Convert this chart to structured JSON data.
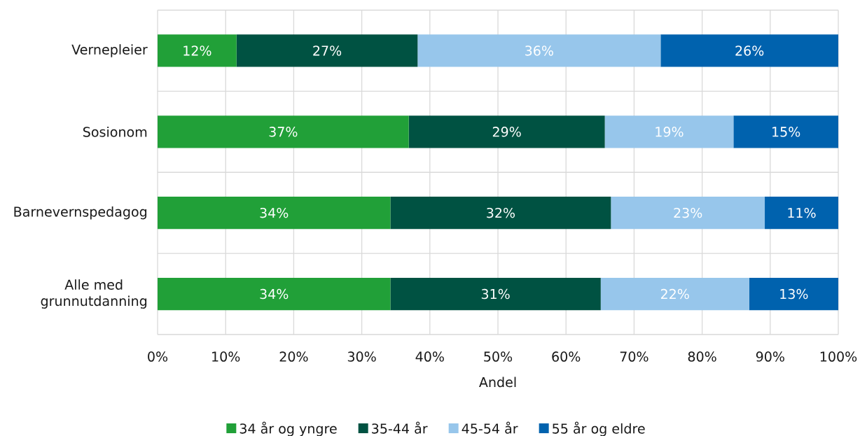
{
  "chart_data": {
    "type": "bar",
    "orientation": "horizontal",
    "stacked": true,
    "xlabel": "Andel",
    "categories": [
      "Vernepleier",
      "Sosionom",
      "Barnevernspedagog",
      "Alle med grunnutdanning"
    ],
    "series": [
      {
        "name": "34 år og yngre",
        "color": "#21a038",
        "values": [
          11.6,
          36.9,
          34.2,
          34.2
        ],
        "value_labels": [
          "12%",
          "37%",
          "34%",
          "34%"
        ]
      },
      {
        "name": "35-44 år",
        "color": "#005242",
        "values": [
          26.6,
          28.8,
          32.4,
          30.9
        ],
        "value_labels": [
          "27%",
          "29%",
          "32%",
          "31%"
        ]
      },
      {
        "name": "45-54 år",
        "color": "#97c6eb",
        "values": [
          35.7,
          18.9,
          22.6,
          21.8
        ],
        "value_labels": [
          "36%",
          "19%",
          "23%",
          "22%"
        ]
      },
      {
        "name": "55 år og eldre",
        "color": "#0062ae",
        "values": [
          26.1,
          15.4,
          10.8,
          13.1
        ],
        "value_labels": [
          "26%",
          "15%",
          "11%",
          "13%"
        ]
      }
    ],
    "xlim": [
      0,
      100
    ],
    "xticks": [
      {
        "value": 0,
        "label": "0%"
      },
      {
        "value": 10,
        "label": "10%"
      },
      {
        "value": 20,
        "label": "20%"
      },
      {
        "value": 30,
        "label": "30%"
      },
      {
        "value": 40,
        "label": "40%"
      },
      {
        "value": 50,
        "label": "50%"
      },
      {
        "value": 60,
        "label": "60%"
      },
      {
        "value": 70,
        "label": "70%"
      },
      {
        "value": 80,
        "label": "80%"
      },
      {
        "value": 90,
        "label": "90%"
      },
      {
        "value": 100,
        "label": "100%"
      }
    ],
    "grid": true,
    "legend": "bottom"
  }
}
